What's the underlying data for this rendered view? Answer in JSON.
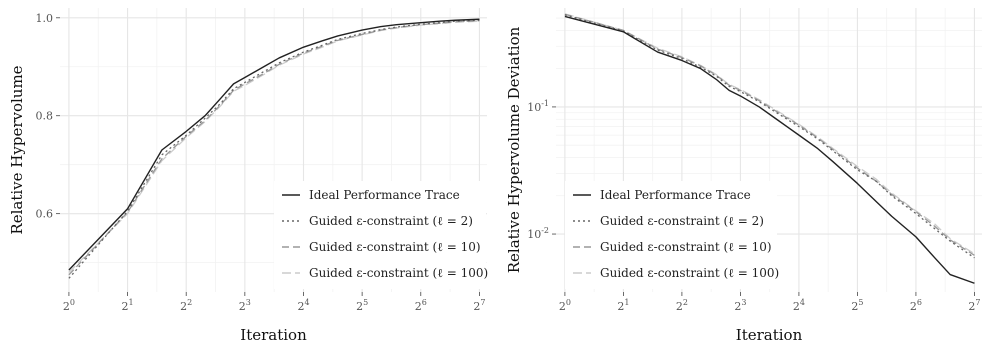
{
  "chart_data": [
    {
      "type": "line",
      "xlabel": "Iteration",
      "ylabel": "Relative Hypervolume",
      "x_scale": "log2",
      "x_ticks": [
        1,
        2,
        4,
        8,
        16,
        32,
        64,
        128
      ],
      "x_tick_labels": [
        {
          "base": "2",
          "exp": "0"
        },
        {
          "base": "2",
          "exp": "1"
        },
        {
          "base": "2",
          "exp": "2"
        },
        {
          "base": "2",
          "exp": "3"
        },
        {
          "base": "2",
          "exp": "4"
        },
        {
          "base": "2",
          "exp": "5"
        },
        {
          "base": "2",
          "exp": "6"
        },
        {
          "base": "2",
          "exp": "7"
        }
      ],
      "xlim": [
        0.9,
        140
      ],
      "y_scale": "linear",
      "ylim": [
        0.44,
        1.02
      ],
      "y_ticks": [
        0.6,
        0.8,
        1.0
      ],
      "y_tick_labels": [
        "0.6",
        "0.8",
        "1.0"
      ],
      "grid": true,
      "legend_position": "bottom-right",
      "x": [
        1,
        2,
        3,
        4,
        5,
        6,
        7,
        8,
        10,
        12,
        16,
        20,
        24,
        32,
        40,
        48,
        64,
        80,
        96,
        128
      ],
      "series": [
        {
          "name": "Ideal Performance Trace",
          "color": "#222222",
          "dash": "solid",
          "values": [
            0.485,
            0.61,
            0.73,
            0.768,
            0.8,
            0.835,
            0.865,
            0.878,
            0.9,
            0.918,
            0.94,
            0.953,
            0.963,
            0.975,
            0.982,
            0.986,
            0.99,
            0.993,
            0.995,
            0.997
          ]
        },
        {
          "name": "Guided ε-constraint (ℓ = 2)",
          "color": "#666666",
          "dash": "2,3",
          "values": [
            0.468,
            0.605,
            0.72,
            0.76,
            0.795,
            0.825,
            0.855,
            0.868,
            0.89,
            0.908,
            0.93,
            0.944,
            0.956,
            0.968,
            0.976,
            0.981,
            0.987,
            0.99,
            0.993,
            0.995
          ]
        },
        {
          "name": "Guided ε-constraint (ℓ = 10)",
          "color": "#999999",
          "dash": "7,4",
          "values": [
            0.475,
            0.603,
            0.712,
            0.758,
            0.79,
            0.822,
            0.852,
            0.865,
            0.886,
            0.905,
            0.928,
            0.942,
            0.954,
            0.966,
            0.975,
            0.98,
            0.986,
            0.989,
            0.992,
            0.994
          ]
        },
        {
          "name": "Guided ε-constraint (ℓ = 100)",
          "color": "#cccccc",
          "dash": "9,4",
          "values": [
            0.48,
            0.6,
            0.708,
            0.755,
            0.788,
            0.82,
            0.85,
            0.862,
            0.884,
            0.903,
            0.926,
            0.94,
            0.953,
            0.965,
            0.974,
            0.979,
            0.985,
            0.988,
            0.991,
            0.993
          ]
        }
      ]
    },
    {
      "type": "line",
      "xlabel": "Iteration",
      "ylabel": "Relative Hypervolume Deviation",
      "x_scale": "log2",
      "x_ticks": [
        1,
        2,
        4,
        8,
        16,
        32,
        64,
        128
      ],
      "x_tick_labels": [
        {
          "base": "2",
          "exp": "0"
        },
        {
          "base": "2",
          "exp": "1"
        },
        {
          "base": "2",
          "exp": "2"
        },
        {
          "base": "2",
          "exp": "3"
        },
        {
          "base": "2",
          "exp": "4"
        },
        {
          "base": "2",
          "exp": "5"
        },
        {
          "base": "2",
          "exp": "6"
        },
        {
          "base": "2",
          "exp": "7"
        }
      ],
      "xlim": [
        0.9,
        140
      ],
      "y_scale": "log10",
      "ylim": [
        0.0035,
        0.6
      ],
      "y_ticks": [
        0.01,
        0.1
      ],
      "y_tick_labels": [
        {
          "base": "10",
          "exp": "-2"
        },
        {
          "base": "10",
          "exp": "-1"
        }
      ],
      "y_minor_ticks": [
        0.02,
        0.03,
        0.04,
        0.05,
        0.06,
        0.07,
        0.08,
        0.09,
        0.2,
        0.3,
        0.4,
        0.5
      ],
      "grid": true,
      "legend_position": "bottom-left",
      "x": [
        1,
        2,
        3,
        4,
        5,
        6,
        7,
        8,
        10,
        12,
        16,
        20,
        24,
        32,
        40,
        48,
        64,
        80,
        96,
        128
      ],
      "series": [
        {
          "name": "Ideal Performance Trace",
          "color": "#222222",
          "dash": "solid",
          "values": [
            0.515,
            0.39,
            0.27,
            0.232,
            0.2,
            0.165,
            0.135,
            0.122,
            0.1,
            0.082,
            0.06,
            0.047,
            0.037,
            0.025,
            0.018,
            0.0138,
            0.0095,
            0.0065,
            0.0048,
            0.0041
          ]
        },
        {
          "name": "Guided ε-constraint (ℓ = 2)",
          "color": "#666666",
          "dash": "2,3",
          "values": [
            0.53,
            0.395,
            0.28,
            0.24,
            0.205,
            0.175,
            0.145,
            0.132,
            0.11,
            0.092,
            0.07,
            0.056,
            0.045,
            0.032,
            0.026,
            0.02,
            0.0145,
            0.011,
            0.0088,
            0.0065
          ]
        },
        {
          "name": "Guided ε-constraint (ℓ = 10)",
          "color": "#999999",
          "dash": "7,4",
          "values": [
            0.535,
            0.4,
            0.285,
            0.245,
            0.21,
            0.178,
            0.148,
            0.135,
            0.112,
            0.094,
            0.072,
            0.057,
            0.046,
            0.033,
            0.026,
            0.0205,
            0.015,
            0.0115,
            0.009,
            0.0068
          ]
        },
        {
          "name": "Guided ε-constraint (ℓ = 100)",
          "color": "#cccccc",
          "dash": "9,4",
          "values": [
            0.54,
            0.4,
            0.29,
            0.248,
            0.212,
            0.18,
            0.15,
            0.137,
            0.114,
            0.096,
            0.073,
            0.058,
            0.047,
            0.034,
            0.027,
            0.021,
            0.0152,
            0.012,
            0.0092,
            0.007
          ]
        }
      ]
    }
  ]
}
